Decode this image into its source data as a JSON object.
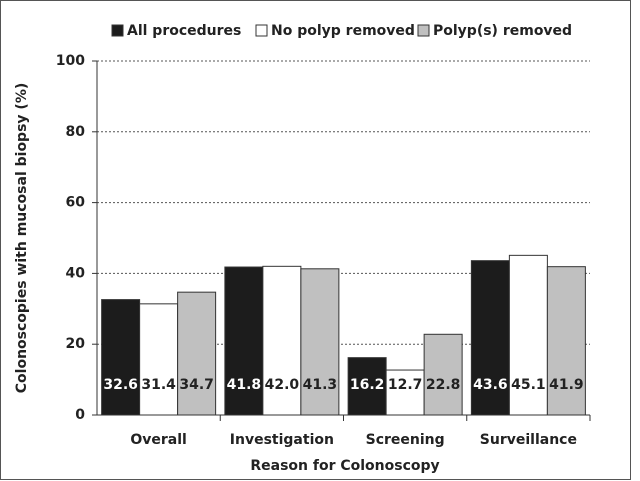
{
  "chart_data": {
    "type": "bar",
    "categories": [
      "Overall",
      "Investigation",
      "Screening",
      "Surveillance"
    ],
    "series": [
      {
        "name": "All procedures",
        "color": "#1c1c1c",
        "values": [
          32.6,
          41.8,
          16.2,
          43.6
        ],
        "value_labels": [
          "32.6",
          "41.8",
          "16.2",
          "43.6"
        ]
      },
      {
        "name": "No polyp removed",
        "color": "#ffffff",
        "values": [
          31.4,
          42.0,
          12.7,
          45.1
        ],
        "value_labels": [
          "31.4",
          "42.0",
          "12.7",
          "45.1"
        ]
      },
      {
        "name": "Polyp(s) removed",
        "color": "#c0c0c0",
        "values": [
          34.7,
          41.3,
          22.8,
          41.9
        ],
        "value_labels": [
          "34.7",
          "41.3",
          "22.8",
          "41.9"
        ]
      }
    ],
    "xlabel": "Reason for Colonoscopy",
    "ylabel": "Colonoscopies with mucosal biopsy (%)",
    "ylim": [
      0,
      100
    ],
    "yticks": [
      0,
      20,
      40,
      60,
      80,
      100
    ],
    "grid": true,
    "legend": "top"
  }
}
